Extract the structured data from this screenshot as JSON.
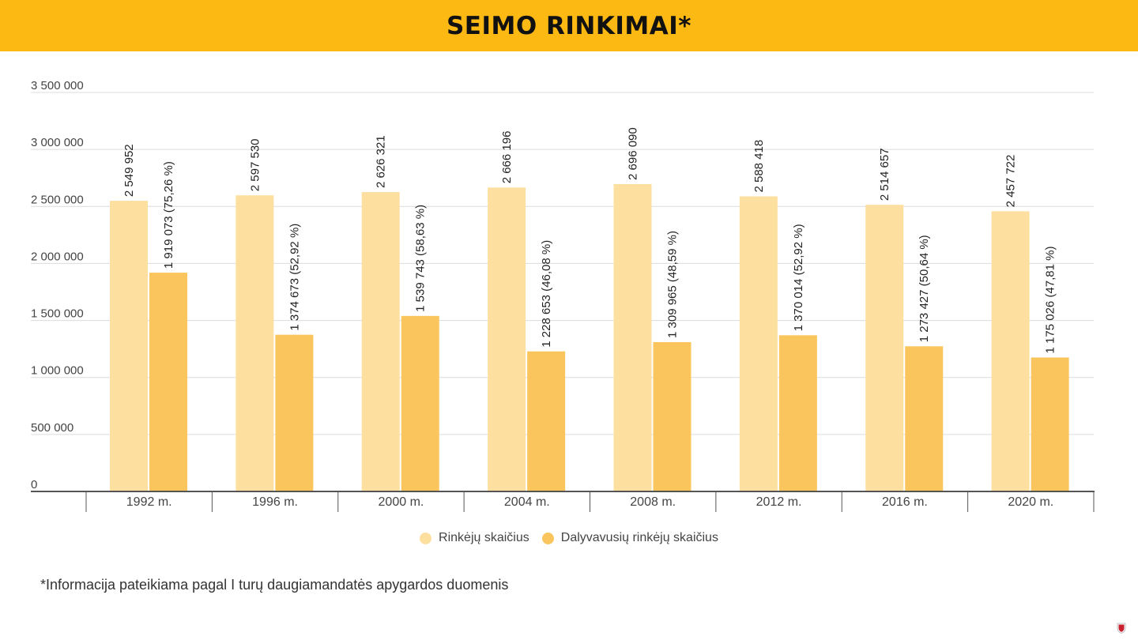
{
  "header": {
    "title": "SEIMO RINKIMAI*"
  },
  "chart_data": {
    "type": "bar",
    "title": "",
    "xlabel": "",
    "ylabel": "",
    "categories": [
      "1992 m.",
      "1996 m.",
      "2000 m.",
      "2004 m.",
      "2008 m.",
      "2012 m.",
      "2016 m.",
      "2020 m."
    ],
    "series": [
      {
        "name": "Rinkėjų skaičius",
        "color": "#FDDFA0",
        "values": [
          2549952,
          2597530,
          2626321,
          2666196,
          2696090,
          2588418,
          2514657,
          2457722
        ],
        "labels": [
          "2 549 952",
          "2 597 530",
          "2 626 321",
          "2 666 196",
          "2 696 090",
          "2 588 418",
          "2 514 657",
          "2 457 722"
        ]
      },
      {
        "name": "Dalyvavusių rinkėjų skaičius",
        "color": "#FBC55E",
        "values": [
          1919073,
          1374673,
          1539743,
          1228653,
          1309965,
          1370014,
          1273427,
          1175026
        ],
        "labels": [
          "1 919 073 (75,26 %)",
          "1 374 673 (52,92 %)",
          "1 539 743 (58,63 %)",
          "1 228 653 (46,08 %)",
          "1 309 965 (48,59 %)",
          "1 370 014 (52,92 %)",
          "1 273 427 (50,64 %)",
          "1 175 026 (47,81 %)"
        ]
      }
    ],
    "yticks": [
      0,
      500000,
      1000000,
      1500000,
      2000000,
      2500000,
      3000000,
      3500000
    ],
    "ytick_labels": [
      "0",
      "500 000",
      "1 000 000",
      "1 500 000",
      "2 000 000",
      "2 500 000",
      "3 000 000",
      "3 500 000"
    ],
    "ylim": [
      0,
      3500000
    ],
    "grid": true,
    "legend_position": "bottom"
  },
  "legend": {
    "items": [
      {
        "label": "Rinkėjų skaičius",
        "color": "#FDDFA0"
      },
      {
        "label": "Dalyvavusių rinkėjų skaičius",
        "color": "#FBC55E"
      }
    ]
  },
  "footnote": "*Informacija pateikiama pagal I turų daugiamandatės apygardos duomenis"
}
